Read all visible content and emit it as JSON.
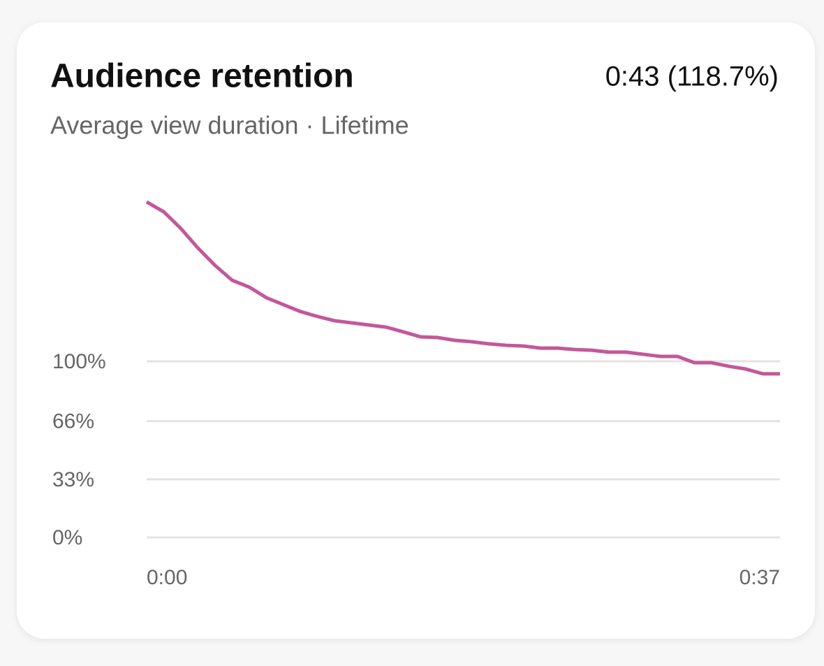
{
  "chart_data": {
    "type": "line",
    "title": "Audience retention",
    "subtitle": "Average view duration · Lifetime",
    "summary": "0:43 (118.7%)",
    "x": [
      0,
      1,
      2,
      3,
      4,
      5,
      6,
      7,
      8,
      9,
      10,
      11,
      12,
      13,
      14,
      15,
      16,
      17,
      18,
      19,
      20,
      21,
      22,
      23,
      24,
      25,
      26,
      27,
      28,
      29,
      30,
      31,
      32,
      33,
      34,
      35,
      36,
      37
    ],
    "series": [
      {
        "name": "Retention",
        "color": "#c2589a",
        "values": [
          190.5,
          184.9,
          175.4,
          164.3,
          154.4,
          146.0,
          142.1,
          136.1,
          132.1,
          128.2,
          125.4,
          123.0,
          121.8,
          120.6,
          119.4,
          116.7,
          113.9,
          113.5,
          111.9,
          111.1,
          109.9,
          109.1,
          108.7,
          107.5,
          107.5,
          106.7,
          106.3,
          105.2,
          105.2,
          104.0,
          102.8,
          102.8,
          99.2,
          99.2,
          97.2,
          95.6,
          92.9,
          92.9
        ]
      }
    ],
    "xlim": [
      0,
      37
    ],
    "xticks": [
      {
        "value": 0,
        "label": "0:00"
      },
      {
        "value": 37,
        "label": "0:37"
      }
    ],
    "ylim": [
      0,
      200
    ],
    "yticks": [
      {
        "value": 0,
        "label": "0%"
      },
      {
        "value": 33,
        "label": "33%"
      },
      {
        "value": 66,
        "label": "66%"
      },
      {
        "value": 100,
        "label": "100%"
      }
    ],
    "grid": true
  }
}
